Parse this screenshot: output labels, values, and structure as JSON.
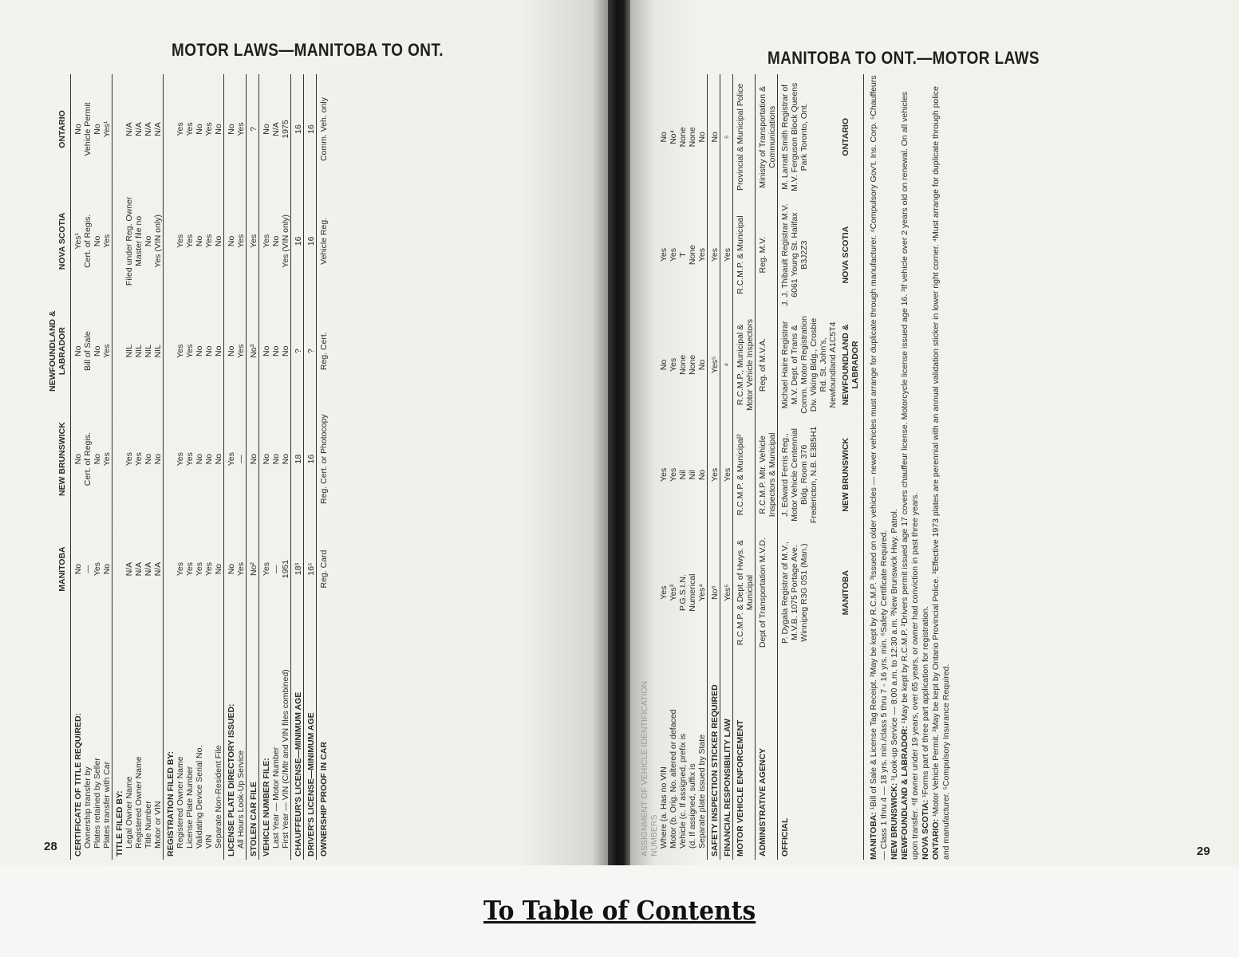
{
  "left_page": {
    "title": "MOTOR LAWS—MANITOBA TO ONT.",
    "page_number": "28",
    "columns": [
      "",
      "MANITOBA",
      "NEW BRUNSWICK",
      "NEWFOUNDLAND & LABRADOR",
      "NOVA SCOTIA",
      "ONTARIO"
    ],
    "rows": [
      {
        "type": "sec",
        "start": true,
        "cells": [
          "CERTIFICATE OF TITLE REQUIRED:",
          "No",
          "No",
          "No",
          "Yes¹",
          "No"
        ]
      },
      {
        "type": "sub",
        "cells": [
          "Ownership transfer by",
          "—",
          "Cert. of Regis.",
          "Bill of Sale",
          "Cert. of Regis.",
          "Vehicle Permit"
        ]
      },
      {
        "type": "sub",
        "cells": [
          "Plates retained by Seller",
          "Yes",
          "No",
          "No",
          "No",
          "No"
        ]
      },
      {
        "type": "sub",
        "cells": [
          "Plates transfer with Car",
          "No",
          "Yes",
          "Yes",
          "Yes",
          "Yes¹"
        ]
      },
      {
        "type": "sec",
        "start": true,
        "cells": [
          "TITLE FILED BY:",
          "",
          "",
          "",
          "",
          ""
        ]
      },
      {
        "type": "sub",
        "cells": [
          "Legal Owner Name",
          "N/A",
          "Yes",
          "NIL",
          "Filed under Reg. Owner",
          "N/A"
        ]
      },
      {
        "type": "sub",
        "cells": [
          "Registered Owner Name",
          "N/A",
          "Yes",
          "NIL",
          "Master file no",
          "N/A"
        ]
      },
      {
        "type": "sub",
        "cells": [
          "Title Number",
          "N/A",
          "No",
          "NIL",
          "No",
          "N/A"
        ]
      },
      {
        "type": "sub",
        "cells": [
          "Motor or VIN",
          "N/A",
          "No",
          "NIL",
          "Yes (VIN only)",
          "N/A"
        ]
      },
      {
        "type": "sec",
        "start": true,
        "cells": [
          "REGISTRATION FILED BY:",
          "",
          "",
          "",
          "",
          ""
        ]
      },
      {
        "type": "sub",
        "cells": [
          "Registered Owner Name",
          "Yes",
          "Yes",
          "Yes",
          "Yes",
          "Yes"
        ]
      },
      {
        "type": "sub",
        "cells": [
          "License Plate Number",
          "Yes",
          "Yes",
          "Yes",
          "Yes",
          "Yes"
        ]
      },
      {
        "type": "sub",
        "cells": [
          "Validating Device Serial No.",
          "Yes",
          "No",
          "No",
          "No",
          "No"
        ]
      },
      {
        "type": "sub",
        "cells": [
          "VIN",
          "Yes",
          "No",
          "No",
          "Yes",
          "Yes"
        ]
      },
      {
        "type": "sub",
        "cells": [
          "Separate Non-Resident File",
          "No",
          "No",
          "No",
          "No",
          "No"
        ]
      },
      {
        "type": "sec",
        "start": true,
        "cells": [
          "LICENSE PLATE DIRECTORY ISSUED:",
          "No",
          "Yes",
          "No",
          "No",
          "No"
        ]
      },
      {
        "type": "sub",
        "cells": [
          "All Hours Look-Up Service",
          "Yes",
          "—",
          "Yes",
          "Yes",
          "Yes"
        ]
      },
      {
        "type": "sec",
        "start": true,
        "cells": [
          "STOLEN CAR FILE",
          "No²",
          "No",
          "No³",
          "Yes",
          "?"
        ]
      },
      {
        "type": "sec",
        "start": true,
        "cells": [
          "VEHICLE NUMBER FILE:",
          "Yes",
          "No",
          "No",
          "Yes",
          "No"
        ]
      },
      {
        "type": "sub",
        "cells": [
          "Last Year — Motor Number",
          "—",
          "No",
          "No",
          "No",
          "N/A"
        ]
      },
      {
        "type": "sub",
        "cells": [
          "First Year — VIN (C/Mtr and VIN files combined)",
          "1951",
          "No",
          "No",
          "Yes (VIN only)",
          "1975"
        ]
      },
      {
        "type": "sec",
        "start": true,
        "cells": [
          "CHAUFFEUR'S LICENSE—MINIMUM AGE",
          "18³",
          "18",
          "?",
          "16",
          "16"
        ]
      },
      {
        "type": "sec",
        "start": true,
        "cells": [
          "DRIVER'S LICENSE—MINIMUM AGE",
          "16⁵",
          "16",
          "?",
          "16",
          "16"
        ]
      },
      {
        "type": "sec",
        "start": true,
        "cells": [
          "OWNERSHIP PROOF IN CAR",
          "Reg. Card",
          "Reg. Cert. or Photocopy",
          "Reg. Cert.",
          "Vehicle Reg.",
          "Comm. Veh. only"
        ]
      }
    ]
  },
  "right_page": {
    "title": "MANITOBA TO ONT.—MOTOR LAWS",
    "page_number": "29",
    "columns": [
      "",
      "MANITOBA",
      "NEW BRUNSWICK",
      "NEWFOUNDLAND & LABRADOR",
      "NOVA SCOTIA",
      "ONTARIO"
    ],
    "rows": [
      {
        "type": "faded",
        "cells": [
          "ASSIGNMENT OF VEHICLE IDENTIFICATION NUMBERS",
          "",
          "",
          "",
          "",
          ""
        ]
      },
      {
        "type": "sub",
        "cells": [
          "Where (a. Has no VIN",
          "Yes",
          "Yes",
          "No",
          "Yes",
          "No"
        ]
      },
      {
        "type": "sub",
        "cells": [
          "Motor (b. Orig. No. altered or defaced",
          "Yes³",
          "Yes",
          "Yes",
          "Yes",
          "No⁴"
        ]
      },
      {
        "type": "sub",
        "cells": [
          "Vehicle (c. If assigned, prefix is",
          "P.G.S.I.N.",
          "Nil",
          "None",
          "T",
          "None"
        ]
      },
      {
        "type": "sub",
        "cells": [
          "(d. If assigned, suffix is",
          "Numerical",
          "Nil",
          "None",
          "None",
          "None"
        ]
      },
      {
        "type": "sub",
        "cells": [
          "Separate plate issued by State",
          "Yes⁴",
          "No",
          "No",
          "Yes",
          "No"
        ]
      },
      {
        "type": "sec",
        "start": true,
        "cells": [
          "SAFETY INSPECTION STICKER REQUIRED",
          "No⁶",
          "Yes",
          "Yes⁵",
          "Yes",
          "No"
        ]
      },
      {
        "type": "sec",
        "start": true,
        "cells": [
          "FINANCIAL RESPONSIBILITY LAW",
          "Yes⁵",
          "Yes",
          "⁴",
          "Yes",
          "⁵"
        ]
      },
      {
        "type": "sec",
        "start": true,
        "cells": [
          "MOTOR VEHICLE ENFORCEMENT",
          "R.C.M.P. & Dept. of Hwys. & Municipal",
          "R.C.M.P. & Municipal²",
          "R.C.M.P., Municipal & Motor Vehicle Inspectors",
          "R.C.M.P. & Municipal",
          "Provincial & Municipal Police"
        ]
      },
      {
        "type": "sec",
        "start": true,
        "cells": [
          "ADMINISTRATIVE AGENCY",
          "Dept of Transportation M.V.D.",
          "R.C.M.P. Mtr. Vehicle Inspectors & Municipal",
          "Reg. of M.V.A.",
          "Reg. M.V.",
          "Ministry of Transportation & Communications"
        ]
      },
      {
        "type": "sec",
        "start": true,
        "cells": [
          "OFFICIAL",
          "P. Dygala Registrar of M.V., M.V.B. 1075 Portage Ave. Winnipeg R3G 0S1 (Man.)",
          "J. Edward Ferris Reg., Motor Vehicle Centennial Bldg. Room 376 Fredericton, N.B. E3B5H1",
          "Michael Haire Registrar M.V. Dept. of Trans & Comm. Motor Registration Div. Viking Bldg., Crosbie Rd. St. John's, Newfoundland A1C5T4",
          "J. J. Thibault Registrar M.V. 6061 Young St. Halifax B3J2Z3",
          "M. Larratt Smith Registrar of M.V. Ferguson Block Queens Park Toronto, Ont."
        ]
      }
    ],
    "footnotes": [
      {
        "label": "MANITOBA:",
        "text": "¹Bill of Sale & License Tag Receipt. ²May be kept by R.C.M.P. ³Issued on older vehicles — newer vehicles must arrange for duplicate through manufacturer. ⁴Compulsory Gov't. Ins. Corp. ⁵Chauffeurs — Class 1 thru 4 — 18 yrs. min./class 5 thru 7 - 16 yrs. min. ⁶Safety Certificate Required."
      },
      {
        "label": "NEW BRUNSWICK:",
        "text": "¹Look-up Service — 8:00 a.m. to 12:30 a.m. ²New Brunswick Hwy. Patrol."
      },
      {
        "label": "NEWFOUNDLAND & LABRADOR:",
        "text": "¹May be kept by R.C.M.P. ²Drivers permit issued age 17 covers chauffeur license. Motorcycle license issued age 16. ³If vehicle over 2 years old on renewal. On all vehicles upon transfer. ⁴If owner under 19 years, over 65 years, or owner had conviction in past three years."
      },
      {
        "label": "NOVA SCOTIA:",
        "text": "¹Forms part of three part application for registration."
      },
      {
        "label": "ONTARIO:",
        "text": "¹Motor Vehicle Permit. ²May be kept by Ontario Provincial Police. ³Effective 1973 plates are perennial with an annual validation sticker in lower right corner. ⁴Must arrange for duplicate through police and manufacturer. ⁵Compulsory Insurance Required."
      }
    ]
  },
  "footer": {
    "toc_link": "To Table of Contents"
  }
}
